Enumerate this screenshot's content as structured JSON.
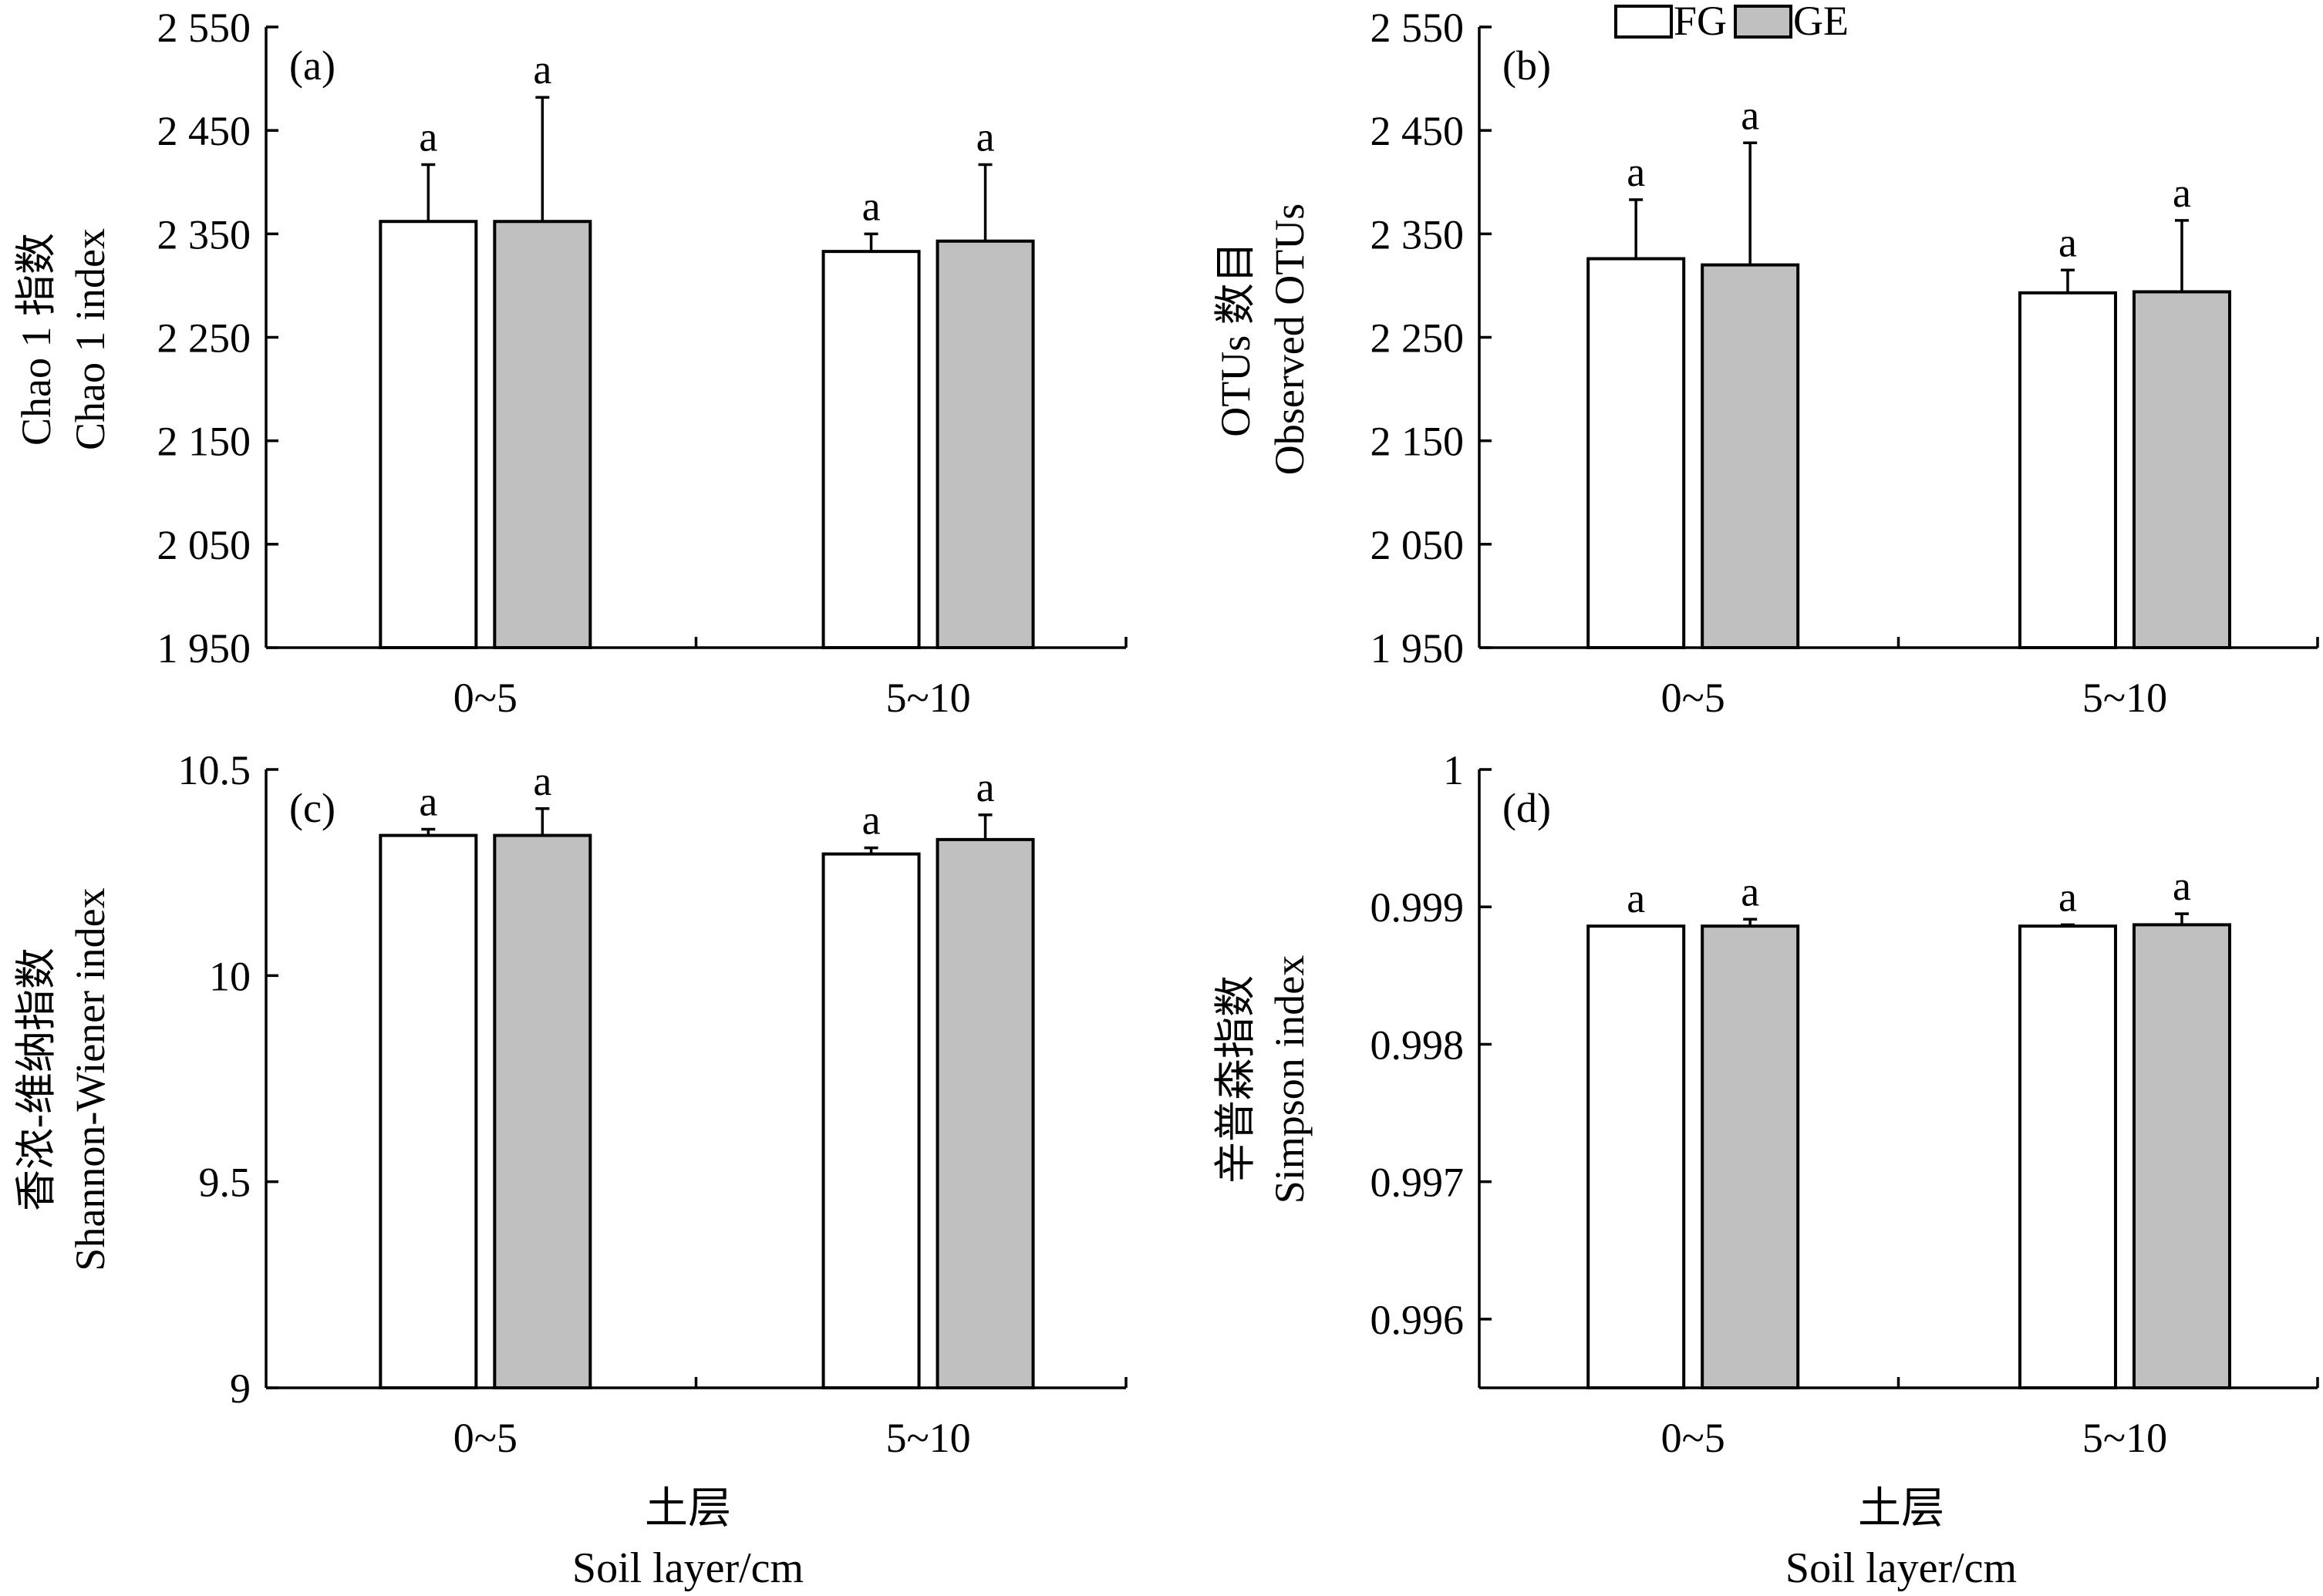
{
  "legend": [
    {
      "label": "FG",
      "color": "#ffffff"
    },
    {
      "label": "GE",
      "color": "#c0c0c0"
    }
  ],
  "x_titles": {
    "line1": "土层",
    "line2": "Soil layer/cm"
  },
  "chart_data": [
    {
      "type": "bar",
      "panel_label": "(a)",
      "ylabel_lines": [
        "Chao 1 指数",
        "Chao 1 index"
      ],
      "categories": [
        "0~5",
        "5~10"
      ],
      "ylim": [
        1950,
        2550
      ],
      "yticks": [
        1950,
        2050,
        2150,
        2250,
        2350,
        2450,
        2550
      ],
      "ytick_labels": [
        "1 950",
        "2 050",
        "2 150",
        "2 250",
        "2 350",
        "2 450",
        "2 550"
      ],
      "series": [
        {
          "name": "FG",
          "values": [
            2362,
            2333
          ],
          "errors": [
            55,
            17
          ],
          "sig": [
            "a",
            "a"
          ]
        },
        {
          "name": "GE",
          "values": [
            2362,
            2343
          ],
          "errors": [
            120,
            74
          ],
          "sig": [
            "a",
            "a"
          ]
        }
      ]
    },
    {
      "type": "bar",
      "panel_label": "(b)",
      "ylabel_lines": [
        "OTUs 数目",
        "Observed OTUs"
      ],
      "categories": [
        "0~5",
        "5~10"
      ],
      "ylim": [
        1950,
        2550
      ],
      "yticks": [
        1950,
        2050,
        2150,
        2250,
        2350,
        2450,
        2550
      ],
      "ytick_labels": [
        "1 950",
        "2 050",
        "2 150",
        "2 250",
        "2 350",
        "2 450",
        "2 550"
      ],
      "series": [
        {
          "name": "FG",
          "values": [
            2326,
            2293
          ],
          "errors": [
            57,
            22
          ],
          "sig": [
            "a",
            "a"
          ]
        },
        {
          "name": "GE",
          "values": [
            2320,
            2294
          ],
          "errors": [
            118,
            69
          ],
          "sig": [
            "a",
            "a"
          ]
        }
      ]
    },
    {
      "type": "bar",
      "panel_label": "(c)",
      "ylabel_lines": [
        "香浓-维纳指数",
        "Shannon-Wiener index"
      ],
      "categories": [
        "0~5",
        "5~10"
      ],
      "ylim": [
        9,
        10.5
      ],
      "yticks": [
        9,
        9.5,
        10,
        10.5
      ],
      "ytick_labels": [
        "9",
        "9.5",
        "10",
        "10.5"
      ],
      "series": [
        {
          "name": "FG",
          "values": [
            10.34,
            10.295
          ],
          "errors": [
            0.015,
            0.015
          ],
          "sig": [
            "a",
            "a"
          ]
        },
        {
          "name": "GE",
          "values": [
            10.34,
            10.33
          ],
          "errors": [
            0.065,
            0.06
          ],
          "sig": [
            "a",
            "a"
          ]
        }
      ]
    },
    {
      "type": "bar",
      "panel_label": "(d)",
      "ylabel_lines": [
        "辛普森指数",
        "Simpson index"
      ],
      "categories": [
        "0~5",
        "5~10"
      ],
      "ylim": [
        0.9955,
        1.0
      ],
      "yticks": [
        0.996,
        0.997,
        0.998,
        0.999,
        1.0
      ],
      "ytick_labels": [
        "0.996",
        "0.997",
        "0.998",
        "0.999",
        "1"
      ],
      "series": [
        {
          "name": "FG",
          "values": [
            0.99886,
            0.99886
          ],
          "errors": [
            0.0,
            1e-05
          ],
          "sig": [
            "a",
            "a"
          ]
        },
        {
          "name": "GE",
          "values": [
            0.99886,
            0.99887
          ],
          "errors": [
            5e-05,
            8e-05
          ],
          "sig": [
            "a",
            "a"
          ]
        }
      ]
    }
  ]
}
